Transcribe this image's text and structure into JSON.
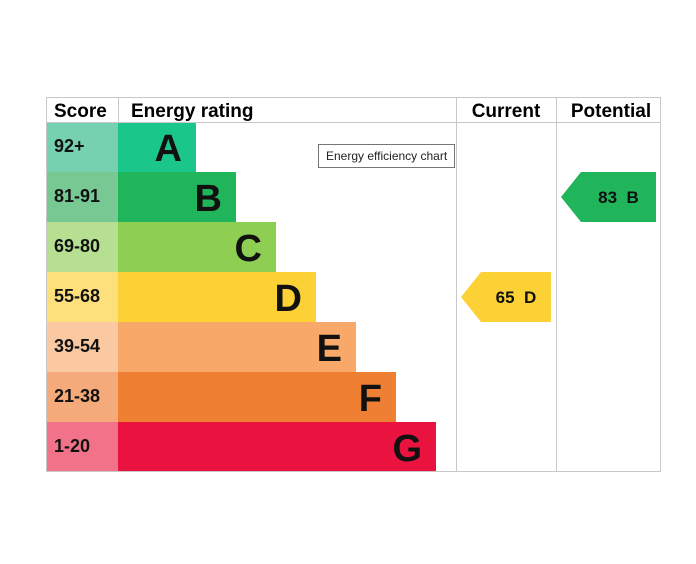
{
  "chart_data": {
    "type": "table",
    "headers": {
      "score": "Score",
      "rating": "Energy rating",
      "current": "Current",
      "potential": "Potential"
    },
    "bands": [
      {
        "letter": "A",
        "range": "92+",
        "color": "#1bc68a",
        "score_bg": "#76d1b0"
      },
      {
        "letter": "B",
        "range": "81-91",
        "color": "#20b45b",
        "score_bg": "#78c893"
      },
      {
        "letter": "C",
        "range": "69-80",
        "color": "#8ecf53",
        "score_bg": "#b6df92"
      },
      {
        "letter": "D",
        "range": "55-68",
        "color": "#fcd135",
        "score_bg": "#fde07c"
      },
      {
        "letter": "E",
        "range": "39-54",
        "color": "#f8a96a",
        "score_bg": "#fac9a1"
      },
      {
        "letter": "F",
        "range": "21-38",
        "color": "#ee7f33",
        "score_bg": "#f4aa7a"
      },
      {
        "letter": "G",
        "range": "1-20",
        "color": "#ea1340",
        "score_bg": "#f2728a"
      }
    ],
    "current": {
      "value": 65,
      "letter": "D",
      "label": "65 D",
      "color": "#fcd135"
    },
    "potential": {
      "value": 83,
      "letter": "B",
      "label": "83 B",
      "color": "#20b45b"
    }
  },
  "tooltip": {
    "text": "Energy efficiency chart"
  }
}
